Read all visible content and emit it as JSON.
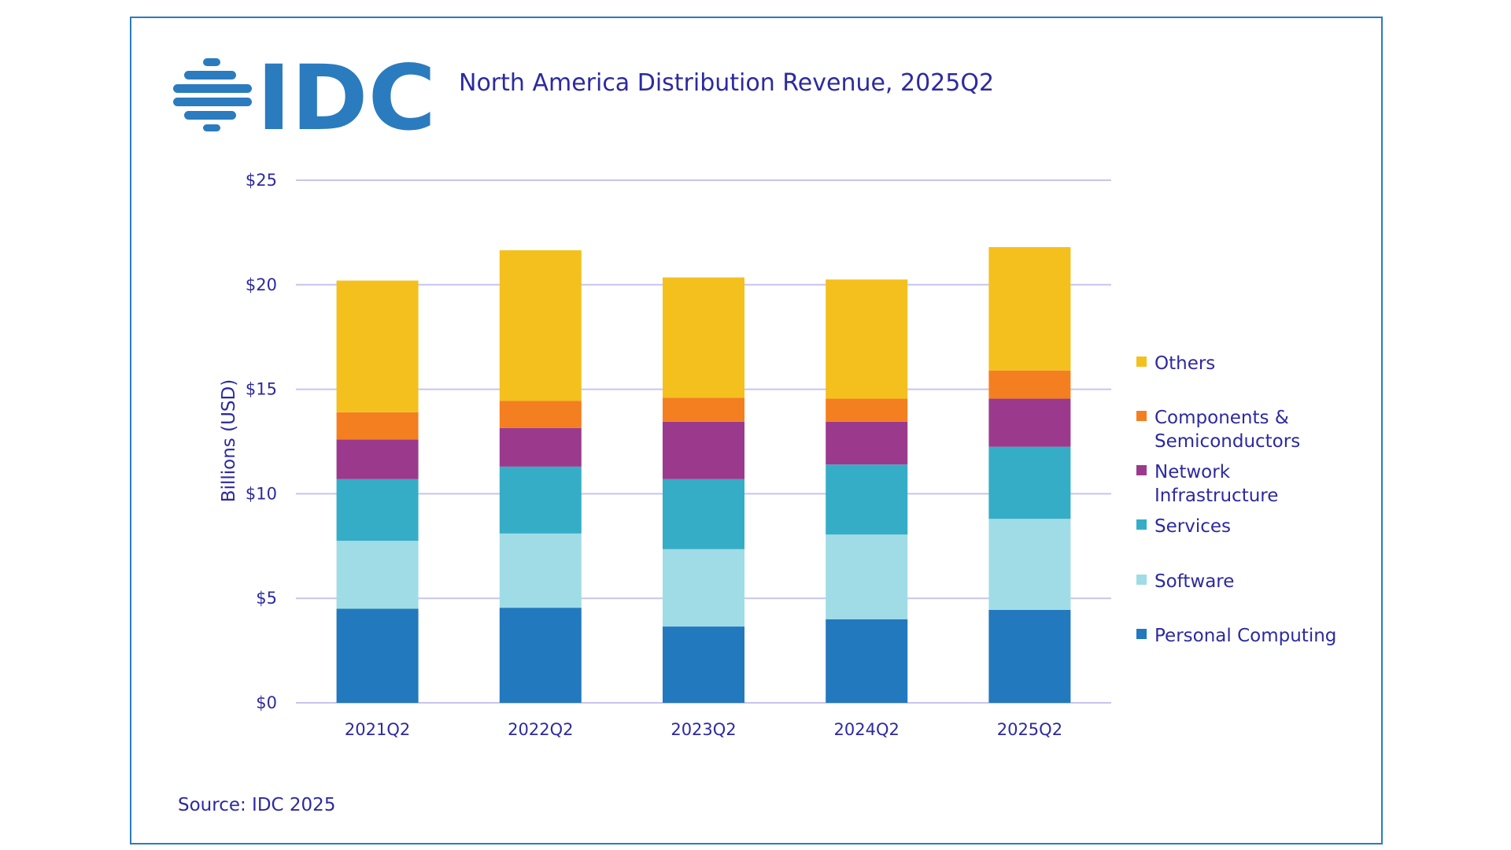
{
  "logo_text": "IDC",
  "source": "Source: IDC 2025",
  "colors": {
    "frame": "#2b7bbf",
    "logo": "#2b7bbf",
    "text": "#2c2aa0",
    "grid": "#c8c4ee"
  },
  "chart_data": {
    "type": "bar",
    "stacked": true,
    "title": "North America Distribution Revenue, 2025Q2",
    "xlabel": "",
    "ylabel": "Billions (USD)",
    "ylim": [
      0,
      25
    ],
    "yticks": [
      0,
      5,
      10,
      15,
      20,
      25
    ],
    "ytick_labels": [
      "$0",
      "$5",
      "$10",
      "$15",
      "$20",
      "$25"
    ],
    "grid": true,
    "legend_position": "right",
    "categories": [
      "2021Q2",
      "2022Q2",
      "2023Q2",
      "2024Q2",
      "2025Q2"
    ],
    "series": [
      {
        "name": "Personal Computing",
        "color": "#2279bd",
        "values": [
          4.5,
          4.55,
          3.65,
          4.0,
          4.45
        ]
      },
      {
        "name": "Software",
        "color": "#a0dce6",
        "values": [
          3.25,
          3.55,
          3.7,
          4.05,
          4.35
        ]
      },
      {
        "name": "Services",
        "color": "#35adc6",
        "values": [
          2.95,
          3.2,
          3.35,
          3.35,
          3.45
        ]
      },
      {
        "name": "Network Infrastructure",
        "color": "#9b3a8d",
        "values": [
          1.9,
          1.85,
          2.75,
          2.05,
          2.3
        ]
      },
      {
        "name": "Components & Semiconductors",
        "color": "#f47f20",
        "values": [
          1.3,
          1.3,
          1.15,
          1.1,
          1.35
        ]
      },
      {
        "name": "Others",
        "color": "#f4c01e",
        "values": [
          6.3,
          7.2,
          5.75,
          5.7,
          5.9
        ]
      }
    ],
    "legend": [
      {
        "series": "Others",
        "lines": [
          "Others"
        ]
      },
      {
        "series": "Components & Semiconductors",
        "lines": [
          "Components &",
          "Semiconductors"
        ]
      },
      {
        "series": "Network Infrastructure",
        "lines": [
          "Network",
          "Infrastructure"
        ]
      },
      {
        "series": "Services",
        "lines": [
          "Services"
        ]
      },
      {
        "series": "Software",
        "lines": [
          "Software"
        ]
      },
      {
        "series": "Personal Computing",
        "lines": [
          "Personal Computing"
        ]
      }
    ]
  }
}
